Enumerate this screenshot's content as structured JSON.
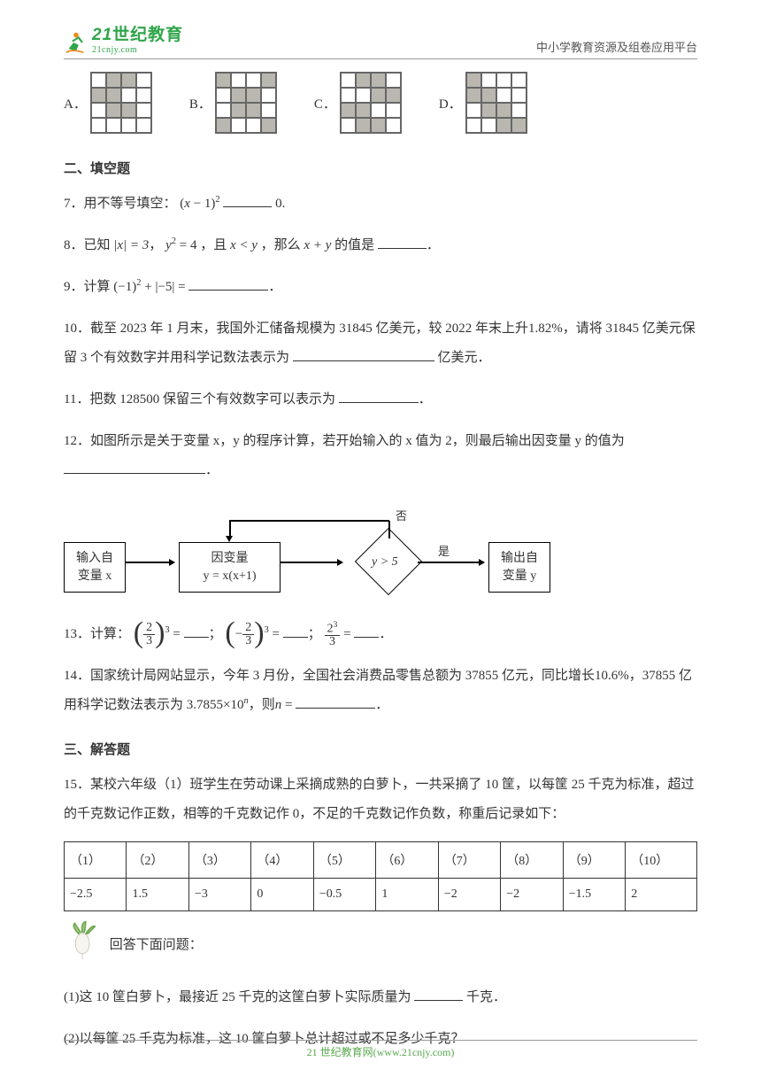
{
  "header": {
    "logo_main": "世纪教育",
    "logo_prefix": "21",
    "logo_url": "21cnjy.com",
    "right_text": "中小学教育资源及组卷应用平台"
  },
  "options": {
    "a": "A．",
    "b": "B．",
    "c": "C．",
    "d": "D．",
    "gridA": [
      0,
      1,
      1,
      0,
      1,
      1,
      0,
      0,
      0,
      1,
      1,
      0,
      0,
      0,
      0,
      0
    ],
    "gridB": [
      1,
      0,
      0,
      1,
      0,
      1,
      1,
      0,
      0,
      1,
      1,
      0,
      1,
      0,
      0,
      1
    ],
    "gridC": [
      0,
      1,
      1,
      0,
      0,
      0,
      1,
      1,
      1,
      1,
      0,
      0,
      0,
      1,
      1,
      0
    ],
    "gridD": [
      1,
      0,
      0,
      0,
      1,
      1,
      0,
      0,
      0,
      1,
      1,
      0,
      0,
      0,
      1,
      1
    ]
  },
  "section2": "二、填空题",
  "q7": "7．用不等号填空：",
  "q7_expr_open": "(",
  "q7_expr_x": "x",
  "q7_expr_minus1": " − 1",
  "q7_expr_close": ")",
  "q7_sq": "2",
  "q7_tail": "0.",
  "q8_pre": "8．已知",
  "q8_abs_x": "|x| = 3",
  "q8_comma": "，",
  "q8_y2": "y",
  "q8_eq4": " = 4",
  "q8_and": "，且",
  "q8_xlty": "x < y",
  "q8_then": "，那么",
  "q8_xpy": "x + y",
  "q8_tail": "的值是",
  "q8_period": "．",
  "q9_pre": "9．计算",
  "q9_expr": "(−1)",
  "q9_sq": "2",
  "q9_plus": " + ",
  "q9_abs5": "|−5|",
  "q9_eq": " = ",
  "q9_period": "．",
  "q10": "10．截至 2023 年 1 月末，我国外汇储备规模为 31845 亿美元，较 2022 年末上升1.82%，请将 31845 亿美元保留 3 个有效数字并用科学记数法表示为",
  "q10_tail": "亿美元．",
  "q11": "11．把数 128500 保留三个有效数字可以表示为",
  "q11_period": "．",
  "q12": "12．如图所示是关于变量 x，y 的程序计算，若开始输入的 x 值为 2，则最后输出因变量 y 的值为",
  "q12_period": "．",
  "flow": {
    "input": "输入自\n变量 x",
    "assign_lhs": "因变量",
    "assign_rhs": "y = x(x+1)",
    "cond": "y > 5",
    "yes": "是",
    "no": "否",
    "output": "输出自\n变量 y"
  },
  "q13_pre": "13．计算：",
  "q13_a_num": "2",
  "q13_a_den": "3",
  "q13_a_exp": "3",
  "q13_b_num": "2",
  "q13_b_den": "3",
  "q13_b_exp": "3",
  "q13_c_num": "2",
  "q13_c_num_exp": "3",
  "q13_c_den": "3",
  "q13_eq": " = ",
  "q13_sep1": "；",
  "q13_sep2": "；",
  "q13_period": "．",
  "q14": "14．国家统计局网站显示，今年 3 月份，全国社会消费品零售总额为 37855 亿元，同比增长10.6%，37855 亿用科学记数法表示为 3.7855×10",
  "q14_n": "n",
  "q14_then": "，则",
  "q14_n2": "n",
  "q14_eq": " = ",
  "q14_period": "．",
  "section3": "三、解答题",
  "q15_intro": "15．某校六年级（1）班学生在劳动课上采摘成熟的白萝卜，一共采摘了 10 筐，以每筐 25 千克为标准，超过的千克数记作正数，相等的千克数记作 0，不足的千克数记作负数，称重后记录如下：",
  "table": {
    "headers": [
      "（1）",
      "（2）",
      "（3）",
      "（4）",
      "（5）",
      "（6）",
      "（7）",
      "（8）",
      "（9）",
      "（10）"
    ],
    "values": [
      "−2.5",
      "1.5",
      "−3",
      "0",
      "−0.5",
      "1",
      "−2",
      "−2",
      "−1.5",
      "2"
    ]
  },
  "q15_answer_prompt": "回答下面问题：",
  "q15_1": "(1)这 10 筐白萝卜，最接近 25 千克的这筐白萝卜实际质量为",
  "q15_1_tail": "千克．",
  "q15_2": "(2)以每筐 25 千克为标准，这 10 筐白萝卜总计超过或不足多少千克？",
  "footer": "21 世纪教育网(www.21cnjy.com)"
}
